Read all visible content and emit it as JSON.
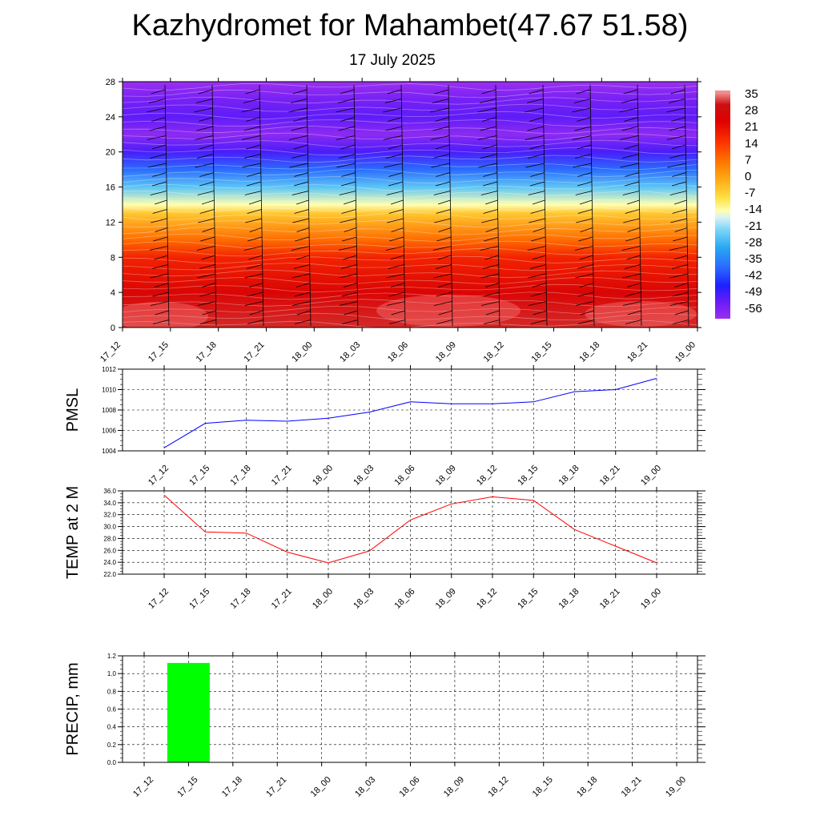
{
  "title": "Kazhydromet for Mahambet(47.67 51.58)",
  "subtitle": "17 July 2025",
  "time_labels": [
    "17_12",
    "17_15",
    "17_18",
    "17_21",
    "18_00",
    "18_03",
    "18_06",
    "18_09",
    "18_12",
    "18_15",
    "18_18",
    "18_21",
    "19_00"
  ],
  "chart_data": [
    {
      "type": "heatmap",
      "name": "temperature-wind cross-section",
      "x": [
        "17_12",
        "17_15",
        "17_18",
        "17_21",
        "18_00",
        "18_03",
        "18_06",
        "18_09",
        "18_12",
        "18_15",
        "18_18",
        "18_21",
        "19_00"
      ],
      "y_ticks": [
        0,
        4,
        8,
        12,
        16,
        20,
        24,
        28
      ],
      "ylim": [
        0,
        28
      ],
      "colorbar_labels": [
        "35",
        "28",
        "21",
        "14",
        "7",
        "0",
        "-7",
        "-14",
        "-21",
        "-28",
        "-35",
        "-42",
        "-49",
        "-56"
      ],
      "temperature_profile_by_height": [
        {
          "y": 0,
          "value": 32
        },
        {
          "y": 4,
          "value": 26
        },
        {
          "y": 8,
          "value": 18
        },
        {
          "y": 10,
          "value": 8
        },
        {
          "y": 13,
          "value": -5
        },
        {
          "y": 14,
          "value": -14
        },
        {
          "y": 16,
          "value": -25
        },
        {
          "y": 18,
          "value": -38
        },
        {
          "y": 20,
          "value": -50
        },
        {
          "y": 22,
          "value": -58
        },
        {
          "y": 24,
          "value": -52
        },
        {
          "y": 26,
          "value": -55
        },
        {
          "y": 28,
          "value": -60
        }
      ],
      "overlay": "wind barbs"
    },
    {
      "type": "line",
      "ylabel": "PMSL",
      "x": [
        "17_12",
        "17_15",
        "17_18",
        "17_21",
        "18_00",
        "18_03",
        "18_06",
        "18_09",
        "18_12",
        "18_15",
        "18_18",
        "18_21",
        "19_00"
      ],
      "values": [
        1004.3,
        1006.7,
        1007.0,
        1006.9,
        1007.2,
        1007.8,
        1008.8,
        1008.6,
        1008.6,
        1008.8,
        1009.8,
        1010.0,
        1011.1
      ],
      "ylim": [
        1004,
        1012
      ],
      "y_ticks": [
        "1004",
        "1006",
        "1008",
        "1010",
        "1012"
      ],
      "color": "#0000ff",
      "grid": true
    },
    {
      "type": "line",
      "ylabel": "TEMP at 2 M",
      "x": [
        "17_12",
        "17_15",
        "17_18",
        "17_21",
        "18_00",
        "18_03",
        "18_06",
        "18_09",
        "18_12",
        "18_15",
        "18_18",
        "18_21",
        "19_00"
      ],
      "values": [
        35.3,
        29.1,
        28.9,
        25.7,
        23.9,
        25.9,
        31.1,
        33.8,
        35.0,
        34.4,
        29.5,
        26.7,
        23.9
      ],
      "ylim": [
        22,
        36
      ],
      "y_ticks": [
        "22.0",
        "24.0",
        "26.0",
        "28.0",
        "30.0",
        "32.0",
        "34.0",
        "36.0"
      ],
      "color": "#ff0000",
      "grid": true
    },
    {
      "type": "bar",
      "ylabel": "PRECIP, mm",
      "categories": [
        "17_12",
        "17_15",
        "17_18",
        "17_21",
        "18_00",
        "18_03",
        "18_06",
        "18_09",
        "18_12",
        "18_15",
        "18_18",
        "18_21",
        "19_00"
      ],
      "values": [
        0,
        1.12,
        0,
        0,
        0,
        0,
        0,
        0,
        0,
        0,
        0,
        0,
        0
      ],
      "ylim": [
        0,
        1.2
      ],
      "y_ticks": [
        "0.0",
        "0.2",
        "0.4",
        "0.6",
        "0.8",
        "1.0",
        "1.2"
      ],
      "color": "#00ff00",
      "grid": true
    }
  ]
}
